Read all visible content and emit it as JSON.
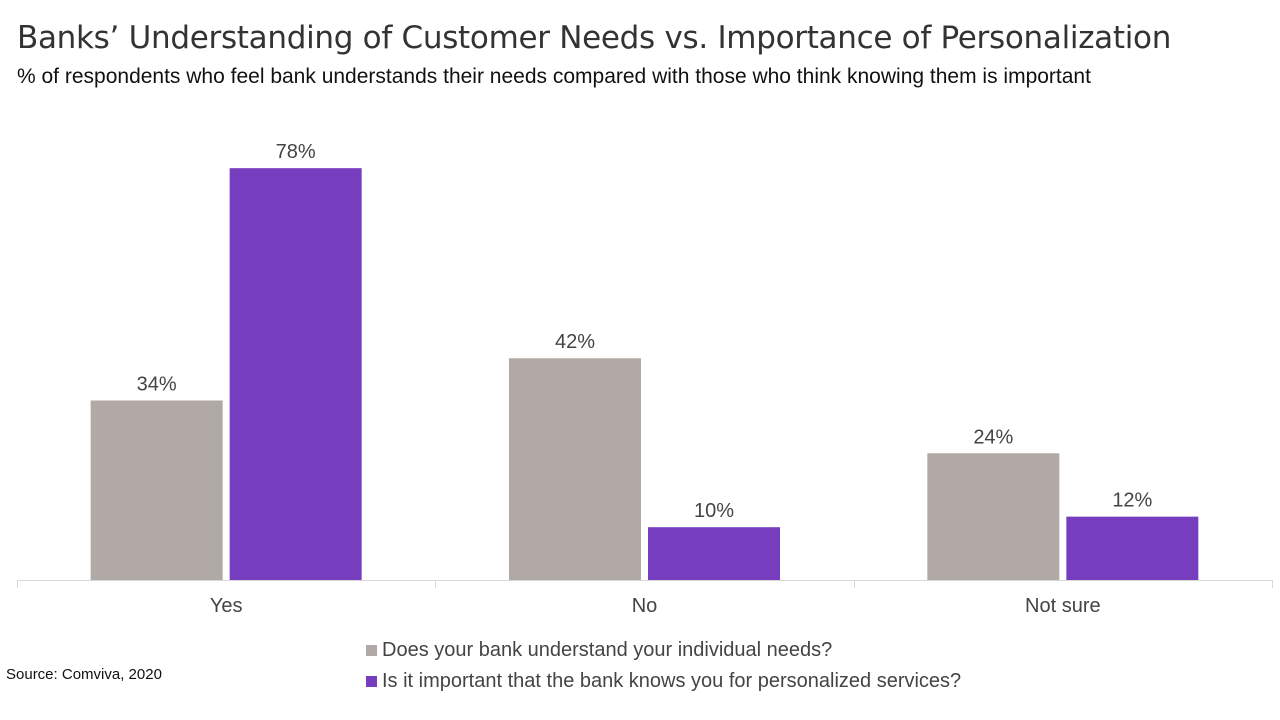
{
  "title": "Banks’ Understanding of Customer Needs vs. Importance of Personalization",
  "subtitle": "% of respondents who feel bank understands their needs compared with those who think knowing them is important",
  "source": "Source: Comviva, 2020",
  "colors": {
    "series_1": "#b0a9a5",
    "series_2": "#763dbf",
    "axis": "#d9d9d9",
    "label_text": "#444444"
  },
  "chart_data": {
    "type": "bar",
    "categories": [
      "Yes",
      "No",
      "Not sure"
    ],
    "series": [
      {
        "name": "Does your bank understand your individual needs?",
        "values": [
          34,
          42,
          24
        ],
        "labels": [
          "34%",
          "42%",
          "24%"
        ]
      },
      {
        "name": "Is it important that the bank knows you for personalized services?",
        "values": [
          78,
          10,
          12
        ],
        "labels": [
          "78%",
          "10%",
          "12%"
        ]
      }
    ],
    "ylim": [
      0,
      80
    ],
    "grid": false,
    "legend": "bottom"
  }
}
